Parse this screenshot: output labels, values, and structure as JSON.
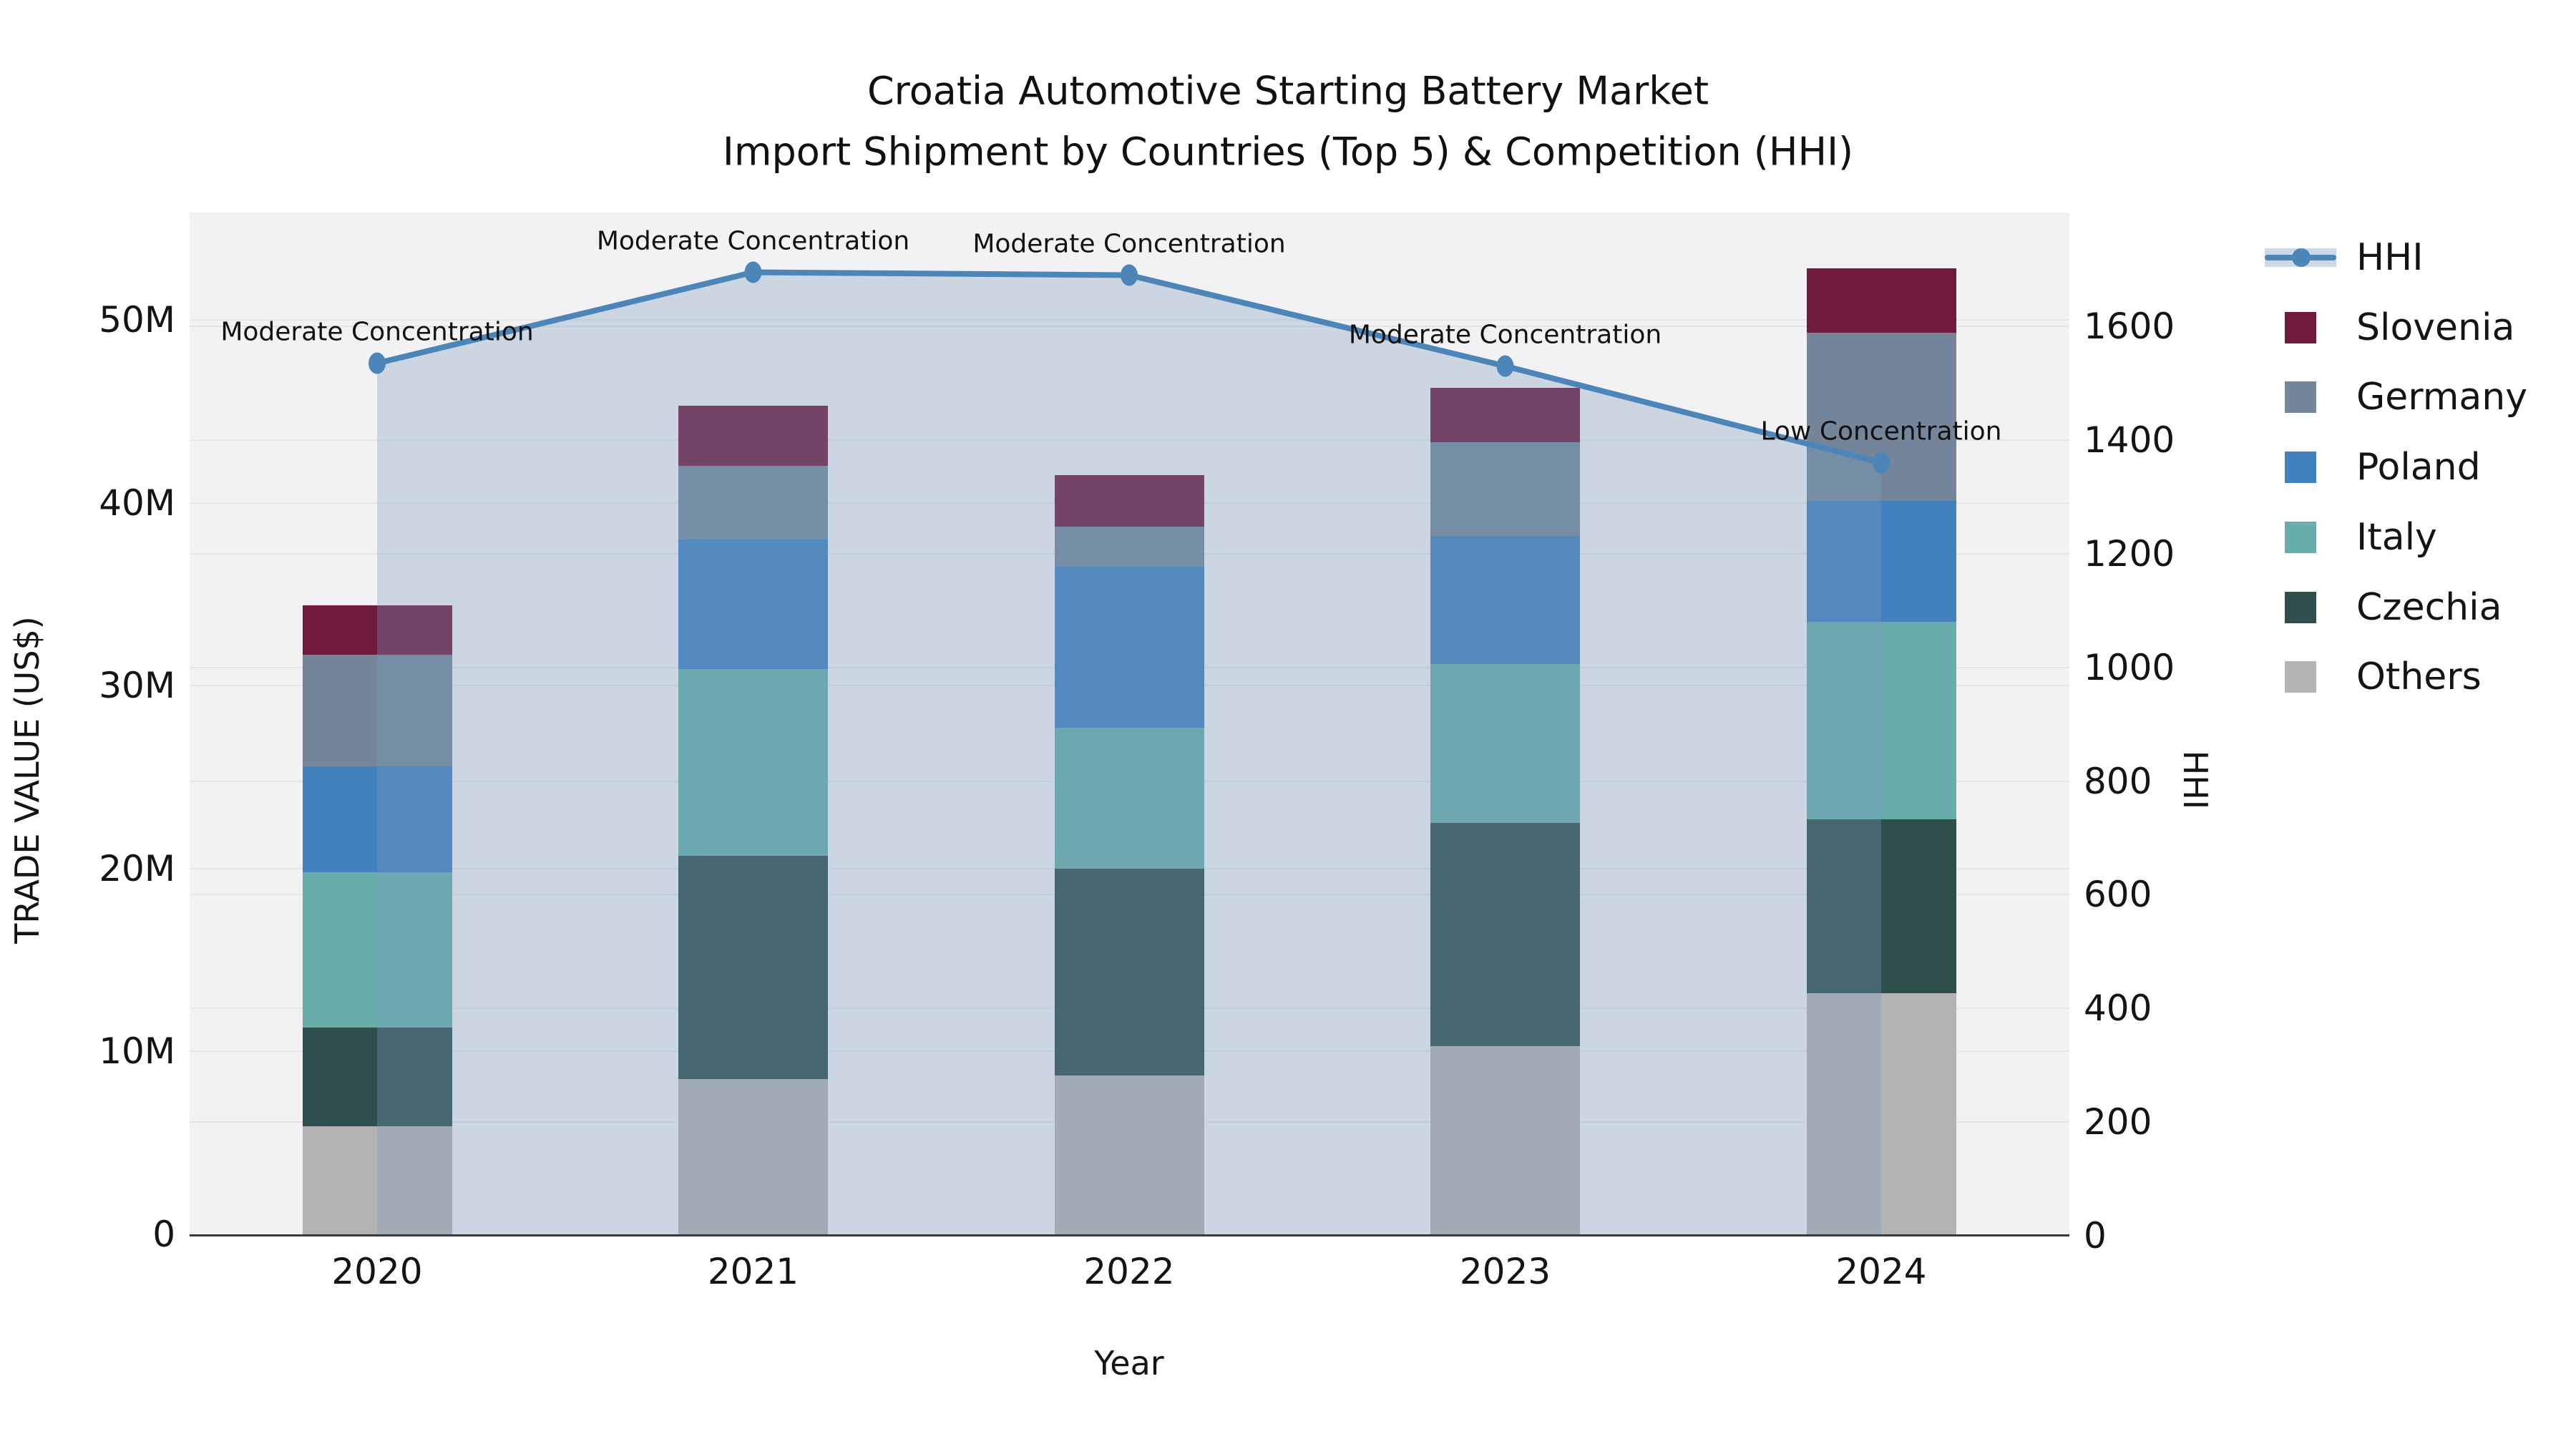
{
  "title": {
    "line1": "Croatia Automotive Starting Battery Market",
    "line2": "Import Shipment by Countries (Top 5) & Competition (HHI)"
  },
  "axes": {
    "x": {
      "title": "Year",
      "ticks": [
        "2020",
        "2021",
        "2022",
        "2023",
        "2024"
      ]
    },
    "y_left": {
      "title": "TRADE VALUE (US$)",
      "tick_labels": [
        "0",
        "10M",
        "20M",
        "30M",
        "40M",
        "50M"
      ],
      "tick_values_millions": [
        0,
        10,
        20,
        30,
        40,
        50
      ]
    },
    "y_right": {
      "title": "HHI",
      "tick_labels": [
        "0",
        "200",
        "400",
        "600",
        "800",
        "1000",
        "1200",
        "1400",
        "1600"
      ],
      "tick_values": [
        0,
        200,
        400,
        600,
        800,
        1000,
        1200,
        1400,
        1600
      ]
    }
  },
  "legend": {
    "entries": [
      {
        "label": "HHI",
        "type": "line",
        "color": "#4c86b8"
      },
      {
        "label": "Slovenia",
        "type": "swatch",
        "color": "#701b3d"
      },
      {
        "label": "Germany",
        "type": "swatch",
        "color": "#75869b"
      },
      {
        "label": "Poland",
        "type": "swatch",
        "color": "#4181be"
      },
      {
        "label": "Italy",
        "type": "swatch",
        "color": "#68ada9"
      },
      {
        "label": "Czechia",
        "type": "swatch",
        "color": "#2e4f4c"
      },
      {
        "label": "Others",
        "type": "swatch",
        "color": "#b3b3b3"
      }
    ]
  },
  "annotations": [
    {
      "year": "2020",
      "text": "Moderate Concentration"
    },
    {
      "year": "2021",
      "text": "Moderate Concentration"
    },
    {
      "year": "2022",
      "text": "Moderate Concentration"
    },
    {
      "year": "2023",
      "text": "Moderate Concentration"
    },
    {
      "year": "2024",
      "text": "Low Concentration"
    }
  ],
  "colors": {
    "plot_background": "#f2f2f4",
    "gridline": "#e4e6e9",
    "axis_line": "#3a3a3a",
    "hhi_line": "#4c86b8",
    "hhi_area_fill": "rgba(120,155,190,0.32)",
    "text": "#141414"
  },
  "chart_data": {
    "type": "bar",
    "subtype": "stacked-bars-with-line-overlay",
    "title": "Croatia Automotive Starting Battery Market — Import Shipment by Countries (Top 5) & Competition (HHI)",
    "xlabel": "Year",
    "ylabel_left": "TRADE VALUE (US$)",
    "ylabel_right": "HHI",
    "categories": [
      "2020",
      "2021",
      "2022",
      "2023",
      "2024"
    ],
    "ylim_left_millions": [
      0,
      56
    ],
    "ylim_right_hhi": [
      0,
      1800
    ],
    "grid": true,
    "legend_position": "right",
    "series_stack_order_bottom_to_top": [
      "Others",
      "Czechia",
      "Italy",
      "Poland",
      "Germany",
      "Slovenia"
    ],
    "series": [
      {
        "name": "Others",
        "unit": "USD millions",
        "values": [
          5.9,
          8.5,
          8.7,
          10.3,
          13.2
        ]
      },
      {
        "name": "Czechia",
        "unit": "USD millions",
        "values": [
          5.4,
          12.2,
          11.3,
          12.2,
          9.5
        ]
      },
      {
        "name": "Italy",
        "unit": "USD millions",
        "values": [
          8.5,
          10.2,
          7.7,
          8.7,
          10.8
        ]
      },
      {
        "name": "Poland",
        "unit": "USD millions",
        "values": [
          5.8,
          7.1,
          8.8,
          7.0,
          6.6
        ]
      },
      {
        "name": "Germany",
        "unit": "USD millions",
        "values": [
          6.1,
          4.0,
          2.2,
          5.1,
          9.2
        ]
      },
      {
        "name": "Slovenia",
        "unit": "USD millions",
        "values": [
          2.7,
          3.3,
          2.8,
          3.0,
          3.5
        ]
      }
    ],
    "totals_millions": [
      34.4,
      45.3,
      41.5,
      46.3,
      52.8
    ],
    "line_series": {
      "name": "HHI",
      "values": [
        1535,
        1695,
        1690,
        1530,
        1360
      ],
      "point_labels": [
        "Moderate Concentration",
        "Moderate Concentration",
        "Moderate Concentration",
        "Moderate Concentration",
        "Low Concentration"
      ],
      "area_fill_to_zero": true
    }
  }
}
